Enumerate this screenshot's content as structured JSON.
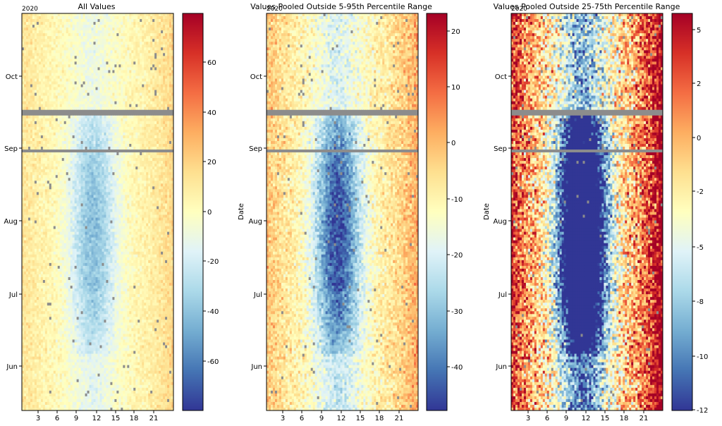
{
  "chart_data": [
    {
      "type": "heatmap",
      "title": "All Values",
      "year_label": "2020",
      "xlabel": "",
      "ylabel": "",
      "xticks": [
        "3",
        "6",
        "9",
        "12",
        "15",
        "18",
        "21"
      ],
      "yticks": [
        "Oct",
        "Sep",
        "Aug",
        "Jul",
        "Jun"
      ],
      "colorbar_ticks": [
        "60",
        "40",
        "20",
        "0",
        "-20",
        "-40",
        "-60"
      ],
      "colorbar_range": [
        -78,
        78
      ],
      "colormap": "RdYlBu_r",
      "missing_color": "#8c8c8c"
    },
    {
      "type": "heatmap",
      "title": "Values Pooled Outside 5-95th Percentile Range",
      "year_label": "2020",
      "xlabel": "",
      "ylabel": "Date",
      "xticks": [
        "3",
        "6",
        "9",
        "12",
        "15",
        "18",
        "21"
      ],
      "yticks": [
        "Oct",
        "Sep",
        "Aug",
        "Jul",
        "Jun"
      ],
      "colorbar_ticks": [
        "20",
        "10",
        "0",
        "-10",
        "-20",
        "-30",
        "-40"
      ],
      "colorbar_range": [
        -47,
        24
      ],
      "colormap": "RdYlBu_r",
      "missing_color": "#8c8c8c"
    },
    {
      "type": "heatmap",
      "title": "Values Pooled Outside 25-75th Percentile Range",
      "year_label": "2020",
      "xlabel": "",
      "ylabel": "Date",
      "xticks": [
        "3",
        "6",
        "9",
        "12",
        "15",
        "18",
        "21"
      ],
      "yticks": [
        "Oct",
        "Sep",
        "Aug",
        "Jul",
        "Jun"
      ],
      "colorbar_ticks": [
        "5",
        "2",
        "0",
        "-2",
        "-5",
        "-8",
        "-10",
        "-12"
      ],
      "colorbar_range": [
        -12,
        6
      ],
      "colormap": "RdYlBu_r",
      "missing_color": "#8c8c8c"
    }
  ]
}
